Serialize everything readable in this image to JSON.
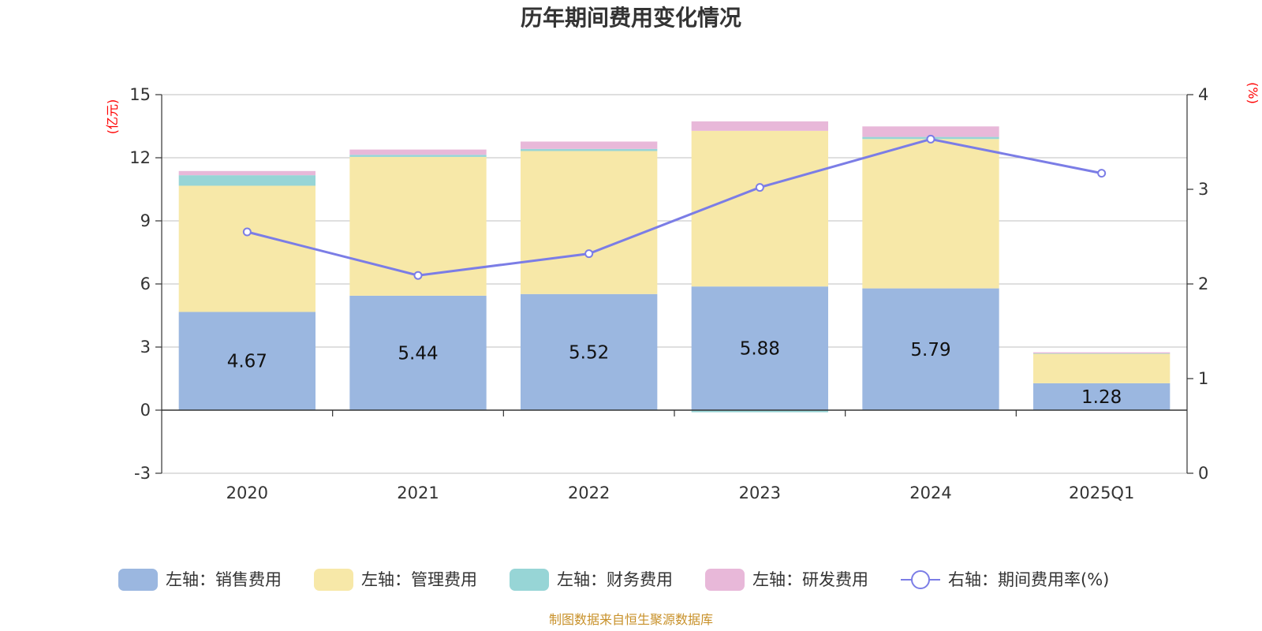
{
  "chart_data": {
    "type": "bar",
    "title": "历年期间费用变化情况",
    "categories": [
      "2020",
      "2021",
      "2022",
      "2023",
      "2024",
      "2025Q1"
    ],
    "left_axis": {
      "unit": "(亿元)",
      "ticks": [
        "-3",
        "0",
        "3",
        "6",
        "9",
        "12",
        "15"
      ],
      "ylim": [
        -3,
        15
      ]
    },
    "right_axis": {
      "unit": "(%)",
      "ticks": [
        "0",
        "1",
        "2",
        "3",
        "4"
      ],
      "ylim": [
        0,
        4
      ]
    },
    "series": [
      {
        "name": "左轴：销售费用",
        "type": "bar",
        "axis": "left",
        "color": "#9bb7e0",
        "values": [
          4.67,
          5.44,
          5.52,
          5.88,
          5.79,
          1.28
        ],
        "labels": [
          "4.67",
          "5.44",
          "5.52",
          "5.88",
          "5.79",
          "1.28"
        ]
      },
      {
        "name": "左轴：管理费用",
        "type": "bar",
        "axis": "left",
        "color": "#f7e8a8",
        "values": [
          6.0,
          6.6,
          6.8,
          7.4,
          7.1,
          1.4
        ]
      },
      {
        "name": "左轴：财务费用",
        "type": "bar",
        "axis": "left",
        "color": "#97d5d6",
        "values": [
          0.5,
          0.1,
          0.1,
          -0.1,
          0.1,
          0.02
        ]
      },
      {
        "name": "左轴：研发费用",
        "type": "bar",
        "axis": "left",
        "color": "#e8b8d9",
        "values": [
          0.2,
          0.25,
          0.35,
          0.45,
          0.5,
          0.05
        ]
      },
      {
        "name": "右轴：期间费用率(%)",
        "type": "line",
        "axis": "right",
        "color": "#7b7de6",
        "values": [
          2.55,
          2.09,
          2.32,
          3.02,
          3.53,
          3.17
        ]
      }
    ],
    "grid": true,
    "legend_position": "bottom"
  },
  "source_note": "制图数据来自恒生聚源数据库"
}
